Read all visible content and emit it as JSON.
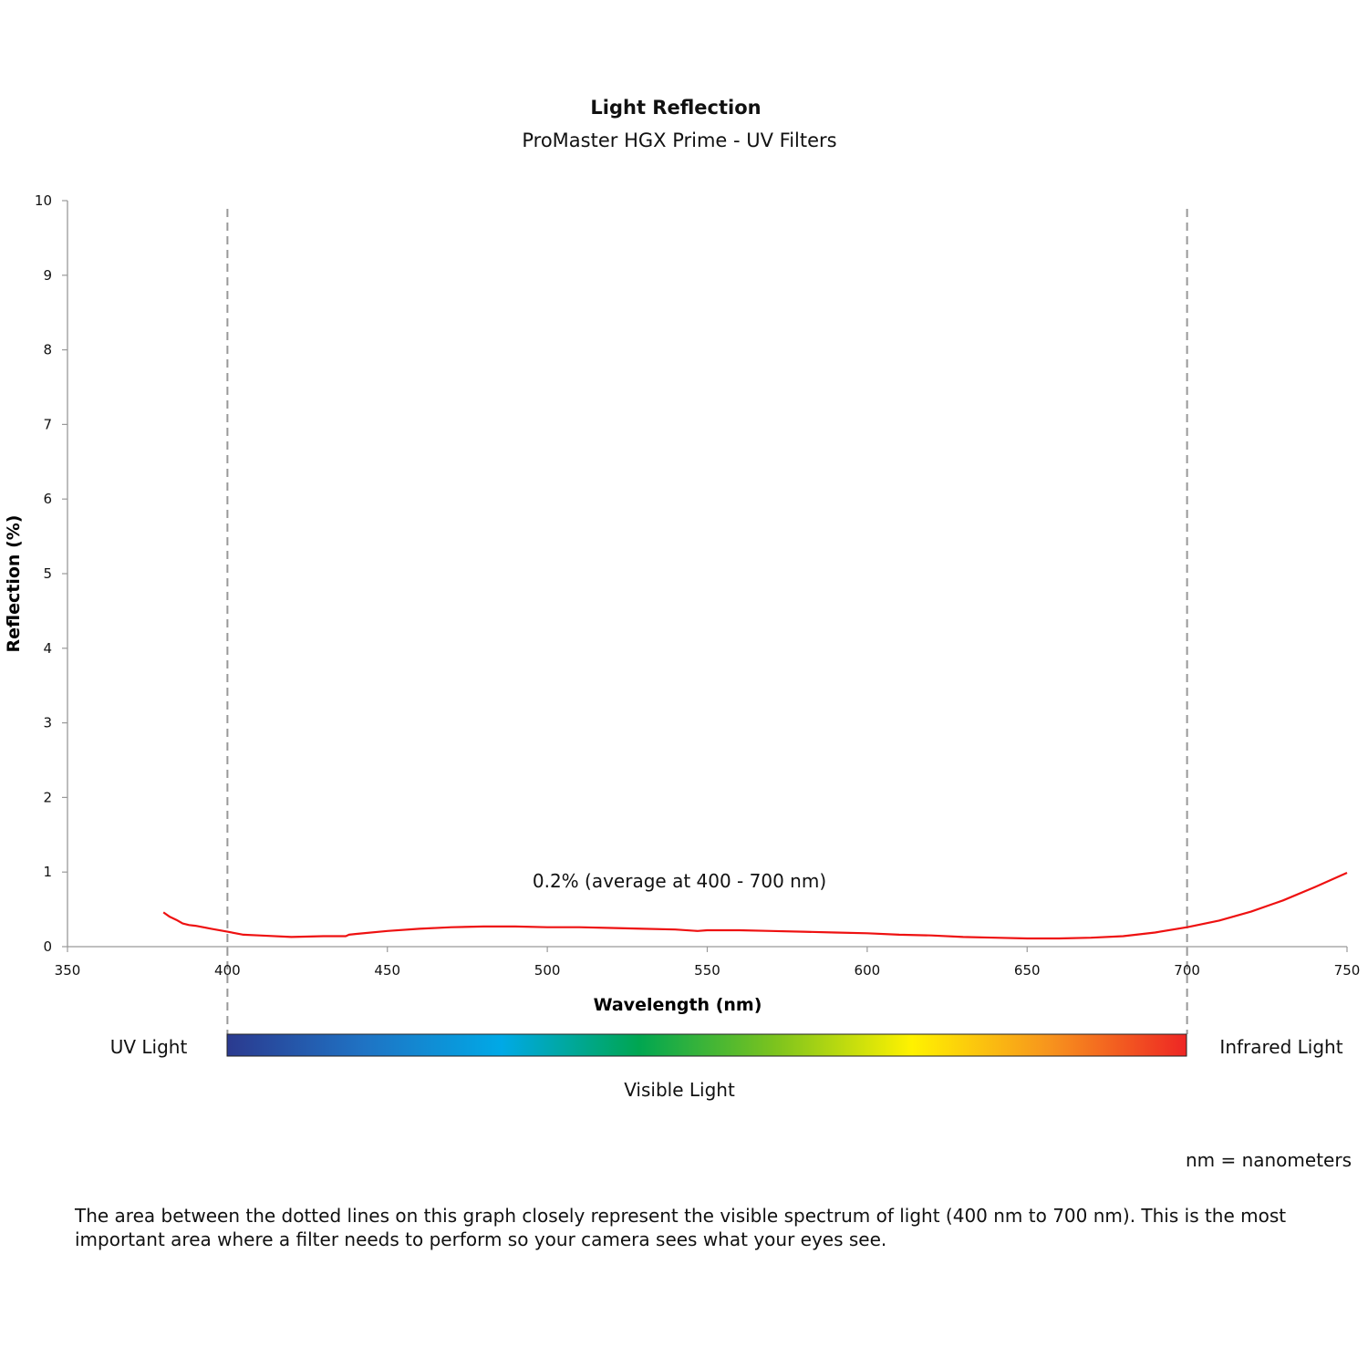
{
  "chart_data": {
    "type": "line",
    "title": "Light Reflection",
    "subtitle": "ProMaster HGX Prime - UV Filters",
    "xlabel": "Wavelength (nm)",
    "ylabel": "Reflection (%)",
    "xlim": [
      350,
      750
    ],
    "ylim": [
      0,
      10
    ],
    "x_ticks": [
      350,
      400,
      450,
      500,
      550,
      600,
      650,
      700,
      750
    ],
    "y_ticks": [
      0,
      1,
      2,
      3,
      4,
      5,
      6,
      7,
      8,
      9,
      10
    ],
    "grid": false,
    "line_color": "#ee1111",
    "reference_lines_x": [
      400,
      700
    ],
    "annotation": "0.2% (average at 400 - 700 nm)",
    "series": [
      {
        "x": [
          380,
          382,
          384,
          386,
          388,
          390,
          395,
          400,
          405,
          410,
          420,
          430,
          437,
          438,
          440,
          450,
          460,
          470,
          480,
          490,
          500,
          510,
          520,
          530,
          540,
          547,
          550,
          560,
          570,
          580,
          590,
          600,
          610,
          620,
          630,
          640,
          650,
          660,
          670,
          680,
          690,
          700,
          710,
          720,
          730,
          740,
          750
        ],
        "y": [
          0.46,
          0.4,
          0.36,
          0.31,
          0.29,
          0.28,
          0.24,
          0.2,
          0.16,
          0.15,
          0.13,
          0.14,
          0.14,
          0.16,
          0.17,
          0.21,
          0.24,
          0.26,
          0.27,
          0.27,
          0.26,
          0.26,
          0.25,
          0.24,
          0.23,
          0.21,
          0.22,
          0.22,
          0.21,
          0.2,
          0.19,
          0.18,
          0.16,
          0.15,
          0.13,
          0.12,
          0.11,
          0.11,
          0.12,
          0.14,
          0.19,
          0.26,
          0.35,
          0.47,
          0.62,
          0.8,
          0.99
        ]
      }
    ]
  },
  "spectrum": {
    "left_label": "UV Light",
    "right_label": "Infrared Light",
    "center_label": "Visible Light",
    "colors": [
      "#2b3a8f",
      "#1f73c4",
      "#00a9e6",
      "#00a651",
      "#7cc31e",
      "#fff200",
      "#f7941d",
      "#ee2624"
    ]
  },
  "footnote": "nm = nanometers",
  "description": "The area between the dotted lines on this graph closely represent the visible spectrum of light (400 nm to 700 nm). This is the most important area where a filter needs to perform so your camera sees what your eyes see."
}
